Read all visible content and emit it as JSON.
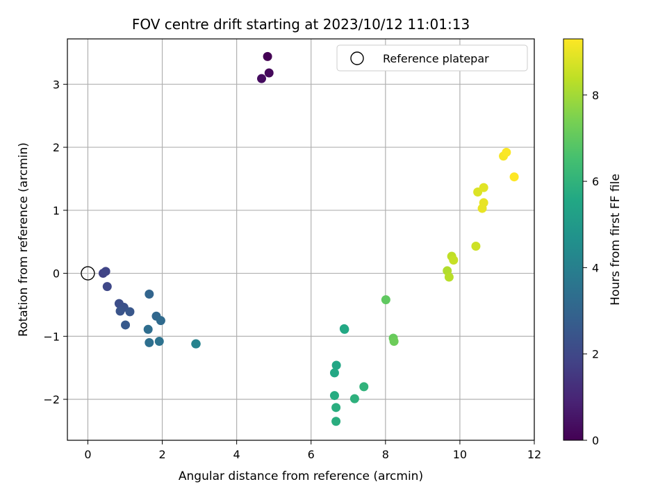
{
  "chart_data": {
    "type": "scatter",
    "title": "FOV centre drift starting at 2023/10/12 11:01:13",
    "xlabel": "Angular distance from reference (arcmin)",
    "ylabel": "Rotation from reference (arcmin)",
    "xlim": [
      -0.55,
      12.0
    ],
    "ylim": [
      -2.65,
      3.72
    ],
    "xticks": [
      0,
      2,
      4,
      6,
      8,
      10,
      12
    ],
    "yticks": [
      -2,
      -1,
      0,
      1,
      2,
      3
    ],
    "grid": true,
    "legend": {
      "label": "Reference platepar",
      "placement": "top-right"
    },
    "reference_point": {
      "x": 0,
      "y": 0
    },
    "colorbar": {
      "label": "Hours from first FF file",
      "range": [
        0,
        9.3
      ],
      "ticks": [
        0,
        2,
        4,
        6,
        8
      ],
      "colormap": "viridis"
    },
    "points": [
      {
        "x": 4.83,
        "y": 3.44,
        "h": 0.0
      },
      {
        "x": 4.87,
        "y": 3.18,
        "h": 0.2
      },
      {
        "x": 4.67,
        "y": 3.09,
        "h": 0.3
      },
      {
        "x": 0.41,
        "y": 0.0,
        "h": 1.8
      },
      {
        "x": 0.48,
        "y": 0.03,
        "h": 1.9
      },
      {
        "x": 0.52,
        "y": -0.21,
        "h": 2.0
      },
      {
        "x": 0.84,
        "y": -0.48,
        "h": 2.2
      },
      {
        "x": 0.97,
        "y": -0.54,
        "h": 2.3
      },
      {
        "x": 0.87,
        "y": -0.6,
        "h": 2.4
      },
      {
        "x": 1.13,
        "y": -0.61,
        "h": 2.5
      },
      {
        "x": 1.01,
        "y": -0.82,
        "h": 2.6
      },
      {
        "x": 1.65,
        "y": -0.33,
        "h": 3.0
      },
      {
        "x": 1.84,
        "y": -0.68,
        "h": 3.1
      },
      {
        "x": 1.96,
        "y": -0.75,
        "h": 3.2
      },
      {
        "x": 1.62,
        "y": -0.89,
        "h": 3.3
      },
      {
        "x": 1.65,
        "y": -1.1,
        "h": 3.4
      },
      {
        "x": 1.92,
        "y": -1.08,
        "h": 3.5
      },
      {
        "x": 2.9,
        "y": -1.12,
        "h": 4.0
      },
      {
        "x": 2.91,
        "y": -1.12,
        "h": 4.1
      },
      {
        "x": 6.89,
        "y": -0.88,
        "h": 5.5
      },
      {
        "x": 6.9,
        "y": -0.89,
        "h": 5.6
      },
      {
        "x": 6.68,
        "y": -1.46,
        "h": 5.5
      },
      {
        "x": 6.63,
        "y": -1.58,
        "h": 5.6
      },
      {
        "x": 6.63,
        "y": -1.94,
        "h": 5.7
      },
      {
        "x": 6.67,
        "y": -2.13,
        "h": 5.8
      },
      {
        "x": 6.67,
        "y": -2.35,
        "h": 5.8
      },
      {
        "x": 7.17,
        "y": -1.99,
        "h": 5.9
      },
      {
        "x": 7.42,
        "y": -1.8,
        "h": 6.0
      },
      {
        "x": 8.01,
        "y": -0.42,
        "h": 7.0
      },
      {
        "x": 8.21,
        "y": -1.03,
        "h": 7.1
      },
      {
        "x": 8.23,
        "y": -1.08,
        "h": 7.2
      },
      {
        "x": 9.66,
        "y": 0.04,
        "h": 8.2
      },
      {
        "x": 9.71,
        "y": -0.06,
        "h": 8.3
      },
      {
        "x": 9.78,
        "y": 0.27,
        "h": 8.4
      },
      {
        "x": 9.83,
        "y": 0.21,
        "h": 8.5
      },
      {
        "x": 10.43,
        "y": 0.43,
        "h": 8.6
      },
      {
        "x": 10.48,
        "y": 1.29,
        "h": 8.8
      },
      {
        "x": 10.64,
        "y": 1.36,
        "h": 8.9
      },
      {
        "x": 10.64,
        "y": 1.12,
        "h": 9.0
      },
      {
        "x": 10.6,
        "y": 1.03,
        "h": 9.0
      },
      {
        "x": 11.17,
        "y": 1.86,
        "h": 9.2
      },
      {
        "x": 11.25,
        "y": 1.92,
        "h": 9.25
      },
      {
        "x": 11.46,
        "y": 1.53,
        "h": 9.3
      }
    ]
  }
}
